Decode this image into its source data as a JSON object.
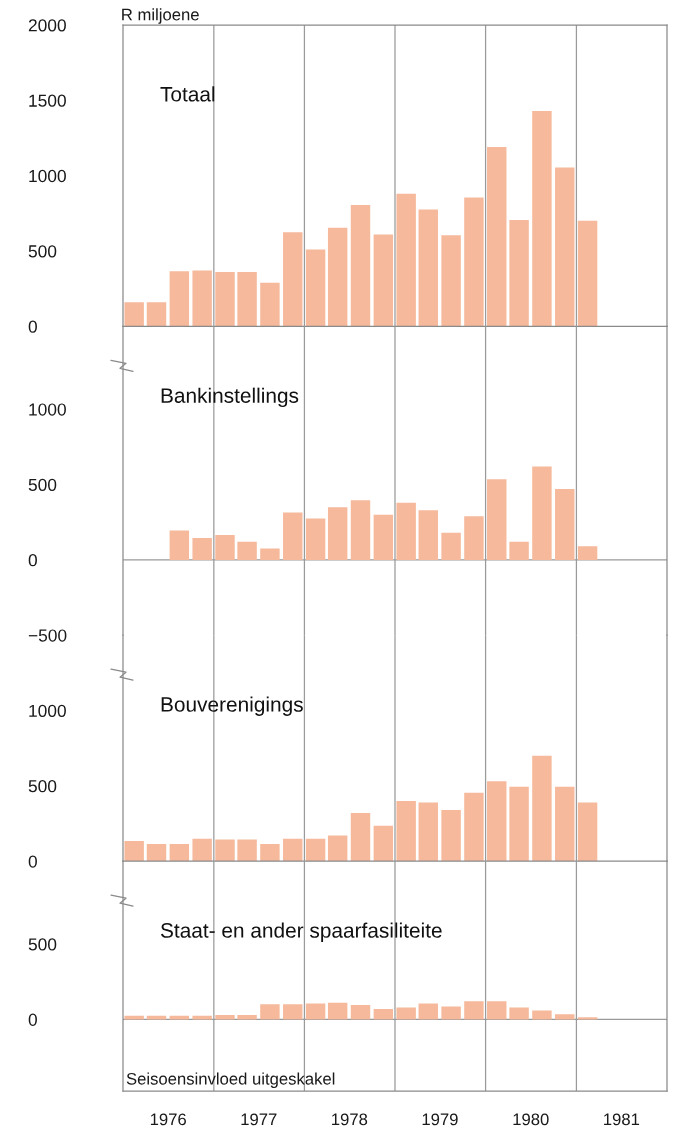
{
  "chart_data": [
    {
      "type": "bar",
      "title": "Totaal",
      "ylabel": "R miljoene",
      "x": [
        "1976-02-15",
        "1976-05-15",
        "1976-08-15",
        "1976-11-15",
        "1977-02-15",
        "1977-05-15",
        "1977-08-15",
        "1977-11-15",
        "1978-02-15",
        "1978-05-15",
        "1978-08-15",
        "1978-11-15",
        "1979-02-15",
        "1979-05-15",
        "1979-08-15",
        "1979-11-15",
        "1980-02-15",
        "1980-05-15",
        "1980-08-15",
        "1980-11-15",
        "1981-02-15"
      ],
      "values": [
        160,
        160,
        365,
        370,
        360,
        360,
        290,
        625,
        510,
        655,
        805,
        610,
        880,
        775,
        605,
        855,
        1190,
        705,
        1430,
        1055,
        700
      ],
      "color": "#f6b99c",
      "xlim": [
        "1976",
        "1982"
      ],
      "ylim": [
        0,
        2000
      ],
      "yticks": [
        0,
        500,
        1000,
        1500,
        2000
      ],
      "tick_labels": "y",
      "ref_lines": [
        {
          "axis": "x",
          "value": "1977",
          "color": "#9a9a9a"
        },
        {
          "axis": "x",
          "value": "1978",
          "color": "#9a9a9a"
        },
        {
          "axis": "x",
          "value": "1979",
          "color": "#9a9a9a"
        },
        {
          "axis": "x",
          "value": "1980",
          "color": "#9a9a9a"
        },
        {
          "axis": "x",
          "value": "1981",
          "color": "#9a9a9a"
        }
      ]
    },
    {
      "type": "bar",
      "title": "Bankinstellings",
      "x": [
        "1976-08-15",
        "1976-11-15",
        "1977-02-15",
        "1977-05-15",
        "1977-08-15",
        "1977-11-15",
        "1978-02-15",
        "1978-05-15",
        "1978-08-15",
        "1978-11-15",
        "1979-02-15",
        "1979-05-15",
        "1979-08-15",
        "1979-11-15",
        "1980-02-15",
        "1980-05-15",
        "1980-08-15",
        "1980-11-15",
        "1981-02-15"
      ],
      "values": [
        195,
        145,
        165,
        120,
        75,
        315,
        275,
        350,
        395,
        300,
        380,
        330,
        180,
        290,
        535,
        120,
        620,
        470,
        90
      ],
      "color": "#f6b99c",
      "xlim": [
        "1976",
        "1982"
      ],
      "ylim": [
        -500,
        1550
      ],
      "yticks": [
        -500,
        0,
        500,
        1000
      ],
      "tick_labels": "y",
      "ref_lines": [
        {
          "axis": "y",
          "value": 0,
          "color": "#9a9a9a"
        },
        {
          "axis": "x",
          "value": "1977",
          "color": "#9a9a9a"
        },
        {
          "axis": "x",
          "value": "1978",
          "color": "#9a9a9a"
        },
        {
          "axis": "x",
          "value": "1979",
          "color": "#9a9a9a"
        },
        {
          "axis": "x",
          "value": "1980",
          "color": "#9a9a9a"
        },
        {
          "axis": "x",
          "value": "1981",
          "color": "#9a9a9a"
        }
      ]
    },
    {
      "type": "bar",
      "title": "Bouverenigings",
      "x": [
        "1976-02-15",
        "1976-05-15",
        "1976-08-15",
        "1976-11-15",
        "1977-02-15",
        "1977-05-15",
        "1977-08-15",
        "1977-11-15",
        "1978-02-15",
        "1978-05-15",
        "1978-08-15",
        "1978-11-15",
        "1979-02-15",
        "1979-05-15",
        "1979-08-15",
        "1979-11-15",
        "1980-02-15",
        "1980-05-15",
        "1980-08-15",
        "1980-11-15",
        "1981-02-15"
      ],
      "values": [
        135,
        115,
        115,
        150,
        145,
        145,
        115,
        150,
        150,
        170,
        320,
        235,
        400,
        390,
        340,
        455,
        530,
        495,
        700,
        495,
        390
      ],
      "color": "#f6b99c",
      "xlim": [
        "1976",
        "1982"
      ],
      "ylim": [
        0,
        1500
      ],
      "yticks": [
        0,
        500,
        1000
      ],
      "tick_labels": "y",
      "ref_lines": [
        {
          "axis": "x",
          "value": "1977",
          "color": "#9a9a9a"
        },
        {
          "axis": "x",
          "value": "1978",
          "color": "#9a9a9a"
        },
        {
          "axis": "x",
          "value": "1979",
          "color": "#9a9a9a"
        },
        {
          "axis": "x",
          "value": "1980",
          "color": "#9a9a9a"
        },
        {
          "axis": "x",
          "value": "1981",
          "color": "#9a9a9a"
        }
      ]
    },
    {
      "type": "bar",
      "title": "Staat- en ander spaarfasiliteite",
      "annotations": [
        "Seisoensinvloed uitgeskakel"
      ],
      "x": [
        "1976-02-15",
        "1976-05-15",
        "1976-08-15",
        "1976-11-15",
        "1977-02-15",
        "1977-05-15",
        "1977-08-15",
        "1977-11-15",
        "1978-02-15",
        "1978-05-15",
        "1978-08-15",
        "1978-11-15",
        "1979-02-15",
        "1979-05-15",
        "1979-08-15",
        "1979-11-15",
        "1980-02-15",
        "1980-05-15",
        "1980-08-15",
        "1980-11-15",
        "1981-02-15"
      ],
      "values": [
        25,
        25,
        25,
        25,
        30,
        30,
        100,
        100,
        105,
        110,
        95,
        70,
        80,
        105,
        85,
        120,
        120,
        80,
        60,
        35,
        15
      ],
      "color": "#f6b99c",
      "xlim": [
        "1976",
        "1982"
      ],
      "xticks": [
        {
          "value": "1976-07-01",
          "label": "1976"
        },
        {
          "value": "1977-07-01",
          "label": "1977"
        },
        {
          "value": "1978-07-01",
          "label": "1978"
        },
        {
          "value": "1979-07-01",
          "label": "1979"
        },
        {
          "value": "1980-07-01",
          "label": "1980"
        },
        {
          "value": "1981-07-01",
          "label": "1981"
        }
      ],
      "ylim": [
        -475,
        1050
      ],
      "yticks": [
        0,
        500
      ],
      "ref_lines": [
        {
          "axis": "y",
          "value": 0,
          "color": "#9a9a9a"
        },
        {
          "axis": "x",
          "value": "1977",
          "color": "#9a9a9a"
        },
        {
          "axis": "x",
          "value": "1978",
          "color": "#9a9a9a"
        },
        {
          "axis": "x",
          "value": "1979",
          "color": "#9a9a9a"
        },
        {
          "axis": "x",
          "value": "1980",
          "color": "#9a9a9a"
        },
        {
          "axis": "x",
          "value": "1981",
          "color": "#9a9a9a"
        }
      ]
    }
  ]
}
